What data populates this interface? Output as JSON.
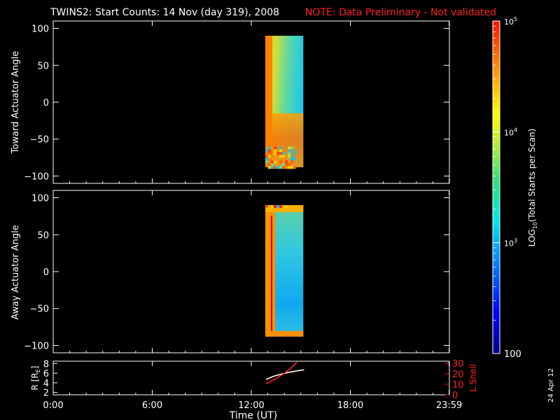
{
  "title": "TWINS2: Start Counts: 14 Nov (day 319), 2008",
  "note": "NOTE: Data Preliminary - Not validated",
  "side_date": "24 Apr 12",
  "chart_data": [
    {
      "type": "heatmap",
      "panel": "toward",
      "ylabel": "Toward Actuator Angle",
      "ylim": [
        -110,
        110
      ],
      "yticks": [
        100,
        50,
        0,
        -50,
        -100
      ],
      "x_hours": [
        12.85,
        15.15
      ],
      "y_extent": [
        -88,
        90
      ],
      "log10_range": [
        2,
        5
      ]
    },
    {
      "type": "heatmap",
      "panel": "away",
      "ylabel": "Away Actuator Angle",
      "ylim": [
        -110,
        110
      ],
      "yticks": [
        100,
        50,
        0,
        -50,
        -100
      ],
      "x_hours": [
        12.85,
        15.15
      ],
      "y_extent": [
        -88,
        90
      ],
      "log10_range": [
        2,
        5
      ]
    },
    {
      "type": "line",
      "panel": "ephemeris",
      "ylabel": "R [R",
      "ylabel_sub": "E",
      "ylabel_end": "]",
      "ylabel2": "L Shell",
      "ylim": [
        1.5,
        8.5
      ],
      "yticks": [
        2,
        4,
        6,
        8
      ],
      "ylim2": [
        0,
        32
      ],
      "yticks2": [
        0,
        10,
        20,
        30
      ],
      "series": [
        {
          "axis": "R",
          "color": "#ffffff",
          "x": [
            12.9,
            13.3,
            13.8,
            14.3,
            14.8,
            15.2
          ],
          "y": [
            4.7,
            5.3,
            5.8,
            6.2,
            6.5,
            6.7
          ]
        },
        {
          "axis": "L",
          "color": "#ff2020",
          "x": [
            12.9,
            13.2,
            13.6,
            14.0,
            14.4,
            14.75
          ],
          "y": [
            10.5,
            13.0,
            16.5,
            20.5,
            25.5,
            31.0
          ]
        }
      ]
    }
  ],
  "xaxis": {
    "label": "Time (UT)",
    "ticks": [
      {
        "hour": 0,
        "label": "0:00"
      },
      {
        "hour": 6,
        "label": "6:00"
      },
      {
        "hour": 12,
        "label": "12:00"
      },
      {
        "hour": 18,
        "label": "18:00"
      },
      {
        "hour": 23.983,
        "label": "23:59"
      }
    ]
  },
  "colorbar": {
    "label": "LOG",
    "label_sub": "10",
    "label_rest": "(Total Starts per Scan)",
    "ticks": [
      {
        "exp": 5,
        "label": "10",
        "sup": "5"
      },
      {
        "exp": 4,
        "label": "10",
        "sup": "4"
      },
      {
        "exp": 3,
        "label": "10",
        "sup": "3"
      },
      {
        "exp": 2,
        "label": "100",
        "sup": ""
      }
    ]
  }
}
